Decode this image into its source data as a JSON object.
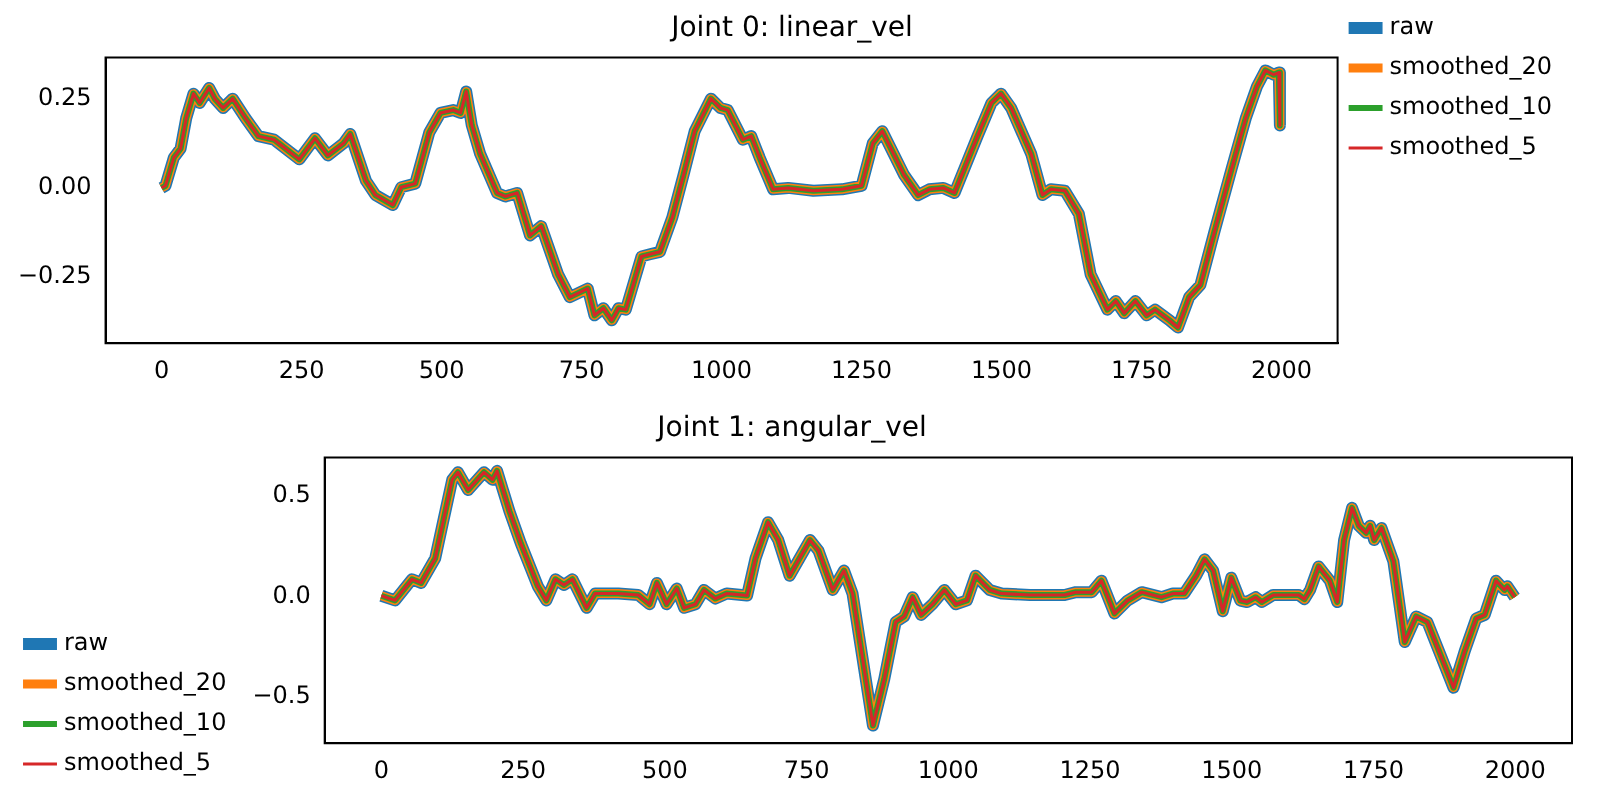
{
  "chart_data": [
    {
      "type": "line",
      "title": "Joint 0: linear_vel",
      "x": [
        0,
        7,
        22,
        34,
        44,
        57,
        68,
        85,
        95,
        110,
        127,
        150,
        173,
        201,
        246,
        274,
        297,
        325,
        337,
        365,
        382,
        413,
        428,
        453,
        478,
        498,
        521,
        534,
        544,
        554,
        569,
        599,
        614,
        635,
        658,
        678,
        708,
        729,
        761,
        773,
        789,
        804,
        816,
        829,
        857,
        872,
        890,
        912,
        932,
        952,
        981,
        998,
        1011,
        1038,
        1053,
        1068,
        1092,
        1119,
        1164,
        1215,
        1250,
        1270,
        1287,
        1326,
        1351,
        1371,
        1396,
        1416,
        1457,
        1482,
        1499,
        1517,
        1553,
        1573,
        1588,
        1613,
        1638,
        1659,
        1689,
        1704,
        1719,
        1739,
        1759,
        1774,
        1800,
        1815,
        1835,
        1855,
        1880,
        1911,
        1936,
        1956,
        1971,
        1986,
        1995,
        1997
      ],
      "series": [
        {
          "name": "raw",
          "color": "#1f77b4",
          "values": [
            0,
            0.006,
            0.085,
            0.11,
            0.195,
            0.264,
            0.238,
            0.28,
            0.25,
            0.224,
            0.25,
            0.195,
            0.145,
            0.135,
            0.08,
            0.139,
            0.091,
            0.125,
            0.151,
            0.02,
            -0.02,
            -0.048,
            0.002,
            0.012,
            0.155,
            0.21,
            0.218,
            0.21,
            0.27,
            0.175,
            0.095,
            -0.014,
            -0.024,
            -0.014,
            -0.133,
            -0.107,
            -0.242,
            -0.306,
            -0.282,
            -0.357,
            -0.337,
            -0.371,
            -0.337,
            -0.341,
            -0.192,
            -0.186,
            -0.179,
            -0.083,
            0.036,
            0.159,
            0.25,
            0.224,
            0.218,
            0.135,
            0.145,
            0.085,
            -0.004,
            0,
            -0.008,
            -0.004,
            0.006,
            0.125,
            0.159,
            0.036,
            -0.02,
            -0.004,
            0,
            -0.014,
            0.145,
            0.238,
            0.264,
            0.224,
            0.095,
            -0.02,
            -0.004,
            -0.008,
            -0.073,
            -0.242,
            -0.341,
            -0.317,
            -0.351,
            -0.317,
            -0.357,
            -0.341,
            -0.371,
            -0.391,
            -0.306,
            -0.272,
            -0.123,
            0.055,
            0.195,
            0.284,
            0.329,
            0.317,
            0.323,
            0.175
          ]
        },
        {
          "name": "smoothed_20",
          "color": "#ff7f0e",
          "values": [
            0,
            0.006,
            0.085,
            0.11,
            0.195,
            0.264,
            0.238,
            0.28,
            0.25,
            0.224,
            0.25,
            0.195,
            0.145,
            0.135,
            0.08,
            0.139,
            0.091,
            0.125,
            0.151,
            0.02,
            -0.02,
            -0.048,
            0.002,
            0.012,
            0.155,
            0.21,
            0.218,
            0.21,
            0.27,
            0.175,
            0.095,
            -0.014,
            -0.024,
            -0.014,
            -0.133,
            -0.107,
            -0.242,
            -0.306,
            -0.282,
            -0.357,
            -0.337,
            -0.371,
            -0.337,
            -0.341,
            -0.192,
            -0.186,
            -0.179,
            -0.083,
            0.036,
            0.159,
            0.25,
            0.224,
            0.218,
            0.135,
            0.145,
            0.085,
            -0.004,
            0,
            -0.008,
            -0.004,
            0.006,
            0.125,
            0.159,
            0.036,
            -0.02,
            -0.004,
            0,
            -0.014,
            0.145,
            0.238,
            0.264,
            0.224,
            0.095,
            -0.02,
            -0.004,
            -0.008,
            -0.073,
            -0.242,
            -0.341,
            -0.317,
            -0.351,
            -0.317,
            -0.357,
            -0.341,
            -0.371,
            -0.391,
            -0.306,
            -0.272,
            -0.123,
            0.055,
            0.195,
            0.284,
            0.329,
            0.317,
            0.323,
            0.175
          ]
        },
        {
          "name": "smoothed_10",
          "color": "#2ca02c",
          "values": [
            0,
            0.006,
            0.085,
            0.11,
            0.195,
            0.264,
            0.238,
            0.28,
            0.25,
            0.224,
            0.25,
            0.195,
            0.145,
            0.135,
            0.08,
            0.139,
            0.091,
            0.125,
            0.151,
            0.02,
            -0.02,
            -0.048,
            0.002,
            0.012,
            0.155,
            0.21,
            0.218,
            0.21,
            0.27,
            0.175,
            0.095,
            -0.014,
            -0.024,
            -0.014,
            -0.133,
            -0.107,
            -0.242,
            -0.306,
            -0.282,
            -0.357,
            -0.337,
            -0.371,
            -0.337,
            -0.341,
            -0.192,
            -0.186,
            -0.179,
            -0.083,
            0.036,
            0.159,
            0.25,
            0.224,
            0.218,
            0.135,
            0.145,
            0.085,
            -0.004,
            0,
            -0.008,
            -0.004,
            0.006,
            0.125,
            0.159,
            0.036,
            -0.02,
            -0.004,
            0,
            -0.014,
            0.145,
            0.238,
            0.264,
            0.224,
            0.095,
            -0.02,
            -0.004,
            -0.008,
            -0.073,
            -0.242,
            -0.341,
            -0.317,
            -0.351,
            -0.317,
            -0.357,
            -0.341,
            -0.371,
            -0.391,
            -0.306,
            -0.272,
            -0.123,
            0.055,
            0.195,
            0.284,
            0.329,
            0.317,
            0.323,
            0.175
          ]
        },
        {
          "name": "smoothed_5",
          "color": "#d62728",
          "values": [
            0,
            0.006,
            0.085,
            0.11,
            0.195,
            0.264,
            0.238,
            0.28,
            0.25,
            0.224,
            0.25,
            0.195,
            0.145,
            0.135,
            0.08,
            0.139,
            0.091,
            0.125,
            0.151,
            0.02,
            -0.02,
            -0.048,
            0.002,
            0.012,
            0.155,
            0.21,
            0.218,
            0.21,
            0.27,
            0.175,
            0.095,
            -0.014,
            -0.024,
            -0.014,
            -0.133,
            -0.107,
            -0.242,
            -0.306,
            -0.282,
            -0.357,
            -0.337,
            -0.371,
            -0.337,
            -0.341,
            -0.192,
            -0.186,
            -0.179,
            -0.083,
            0.036,
            0.159,
            0.25,
            0.224,
            0.218,
            0.135,
            0.145,
            0.085,
            -0.004,
            0,
            -0.008,
            -0.004,
            0.006,
            0.125,
            0.159,
            0.036,
            -0.02,
            -0.004,
            0,
            -0.014,
            0.145,
            0.238,
            0.264,
            0.224,
            0.095,
            -0.02,
            -0.004,
            -0.008,
            -0.073,
            -0.242,
            -0.341,
            -0.317,
            -0.351,
            -0.317,
            -0.357,
            -0.341,
            -0.371,
            -0.391,
            -0.306,
            -0.272,
            -0.123,
            0.055,
            0.195,
            0.284,
            0.329,
            0.317,
            0.323,
            0.175
          ]
        }
      ],
      "xlim": [
        -100,
        2100
      ],
      "xticks": [
        0,
        250,
        500,
        750,
        1000,
        1250,
        1500,
        1750,
        2000
      ],
      "ylim": [
        -0.435,
        0.365
      ],
      "yticks": [
        {
          "value": -0.25,
          "label": "−0.25"
        },
        {
          "value": 0,
          "label": "0.00"
        },
        {
          "value": 0.25,
          "label": "0.25"
        }
      ],
      "legend": "top right"
    },
    {
      "type": "line",
      "title": "Joint 1: angular_vel",
      "x": [
        0,
        24,
        54,
        70,
        95,
        110,
        125,
        135,
        153,
        181,
        196,
        204,
        226,
        246,
        276,
        291,
        307,
        322,
        337,
        362,
        377,
        418,
        453,
        473,
        486,
        503,
        521,
        534,
        554,
        569,
        589,
        609,
        645,
        660,
        682,
        700,
        720,
        756,
        771,
        796,
        816,
        831,
        867,
        887,
        907,
        922,
        937,
        952,
        972,
        993,
        1013,
        1033,
        1048,
        1073,
        1094,
        1144,
        1205,
        1225,
        1253,
        1270,
        1293,
        1316,
        1341,
        1376,
        1396,
        1416,
        1437,
        1452,
        1467,
        1484,
        1499,
        1515,
        1527,
        1542,
        1553,
        1573,
        1618,
        1628,
        1638,
        1653,
        1673,
        1686,
        1698,
        1712,
        1724,
        1737,
        1744,
        1751,
        1764,
        1785,
        1805,
        1825,
        1845,
        1870,
        1891,
        1911,
        1931,
        1946,
        1966,
        1981,
        1986,
        1999
      ],
      "series": [
        {
          "name": "raw",
          "color": "#1f77b4",
          "values": [
            0.003,
            -0.02,
            0.085,
            0.067,
            0.19,
            0.386,
            0.58,
            0.617,
            0.529,
            0.617,
            0.58,
            0.624,
            0.422,
            0.263,
            0.05,
            -0.02,
            0.085,
            0.057,
            0.085,
            -0.057,
            0.014,
            0.014,
            0.007,
            -0.039,
            0.067,
            -0.039,
            0.039,
            -0.057,
            -0.039,
            0.032,
            -0.011,
            0.014,
            0.004,
            0.19,
            0.369,
            0.28,
            0.103,
            0.28,
            0.227,
            0.032,
            0.128,
            0.014,
            -0.642,
            -0.411,
            -0.128,
            -0.1,
            -0.004,
            -0.092,
            -0.039,
            0.032,
            -0.039,
            -0.02,
            0.103,
            0.032,
            0.014,
            0.007,
            0.007,
            0.021,
            0.021,
            0.078,
            -0.085,
            -0.021,
            0.021,
            -0.004,
            0.014,
            0.014,
            0.103,
            0.184,
            0.128,
            -0.074,
            0.093,
            -0.021,
            -0.028,
            -0.004,
            -0.028,
            0.007,
            0.007,
            -0.014,
            0.032,
            0.149,
            0.078,
            -0.028,
            0.28,
            0.44,
            0.351,
            0.316,
            0.351,
            0.28,
            0.34,
            0.173,
            -0.227,
            -0.1,
            -0.128,
            -0.305,
            -0.454,
            -0.27,
            -0.11,
            -0.092,
            0.078,
            0.032,
            0.05,
            -0.004
          ]
        },
        {
          "name": "smoothed_20",
          "color": "#ff7f0e",
          "values": [
            0.003,
            -0.02,
            0.085,
            0.067,
            0.19,
            0.386,
            0.58,
            0.617,
            0.529,
            0.617,
            0.58,
            0.624,
            0.422,
            0.263,
            0.05,
            -0.02,
            0.085,
            0.057,
            0.085,
            -0.057,
            0.014,
            0.014,
            0.007,
            -0.039,
            0.067,
            -0.039,
            0.039,
            -0.057,
            -0.039,
            0.032,
            -0.011,
            0.014,
            0.004,
            0.19,
            0.369,
            0.28,
            0.103,
            0.28,
            0.227,
            0.032,
            0.128,
            0.014,
            -0.642,
            -0.411,
            -0.128,
            -0.1,
            -0.004,
            -0.092,
            -0.039,
            0.032,
            -0.039,
            -0.02,
            0.103,
            0.032,
            0.014,
            0.007,
            0.007,
            0.021,
            0.021,
            0.078,
            -0.085,
            -0.021,
            0.021,
            -0.004,
            0.014,
            0.014,
            0.103,
            0.184,
            0.128,
            -0.074,
            0.093,
            -0.021,
            -0.028,
            -0.004,
            -0.028,
            0.007,
            0.007,
            -0.014,
            0.032,
            0.149,
            0.078,
            -0.028,
            0.28,
            0.44,
            0.351,
            0.316,
            0.351,
            0.28,
            0.34,
            0.173,
            -0.227,
            -0.1,
            -0.128,
            -0.305,
            -0.454,
            -0.27,
            -0.11,
            -0.092,
            0.078,
            0.032,
            0.05,
            -0.004
          ]
        },
        {
          "name": "smoothed_10",
          "color": "#2ca02c",
          "values": [
            0.003,
            -0.02,
            0.085,
            0.067,
            0.19,
            0.386,
            0.58,
            0.617,
            0.529,
            0.617,
            0.58,
            0.624,
            0.422,
            0.263,
            0.05,
            -0.02,
            0.085,
            0.057,
            0.085,
            -0.057,
            0.014,
            0.014,
            0.007,
            -0.039,
            0.067,
            -0.039,
            0.039,
            -0.057,
            -0.039,
            0.032,
            -0.011,
            0.014,
            0.004,
            0.19,
            0.369,
            0.28,
            0.103,
            0.28,
            0.227,
            0.032,
            0.128,
            0.014,
            -0.642,
            -0.411,
            -0.128,
            -0.1,
            -0.004,
            -0.092,
            -0.039,
            0.032,
            -0.039,
            -0.02,
            0.103,
            0.032,
            0.014,
            0.007,
            0.007,
            0.021,
            0.021,
            0.078,
            -0.085,
            -0.021,
            0.021,
            -0.004,
            0.014,
            0.014,
            0.103,
            0.184,
            0.128,
            -0.074,
            0.093,
            -0.021,
            -0.028,
            -0.004,
            -0.028,
            0.007,
            0.007,
            -0.014,
            0.032,
            0.149,
            0.078,
            -0.028,
            0.28,
            0.44,
            0.351,
            0.316,
            0.351,
            0.28,
            0.34,
            0.173,
            -0.227,
            -0.1,
            -0.128,
            -0.305,
            -0.454,
            -0.27,
            -0.11,
            -0.092,
            0.078,
            0.032,
            0.05,
            -0.004
          ]
        },
        {
          "name": "smoothed_5",
          "color": "#d62728",
          "values": [
            0.003,
            -0.02,
            0.085,
            0.067,
            0.19,
            0.386,
            0.58,
            0.617,
            0.529,
            0.617,
            0.58,
            0.624,
            0.422,
            0.263,
            0.05,
            -0.02,
            0.085,
            0.057,
            0.085,
            -0.057,
            0.014,
            0.014,
            0.007,
            -0.039,
            0.067,
            -0.039,
            0.039,
            -0.057,
            -0.039,
            0.032,
            -0.011,
            0.014,
            0.004,
            0.19,
            0.369,
            0.28,
            0.103,
            0.28,
            0.227,
            0.032,
            0.128,
            0.014,
            -0.642,
            -0.411,
            -0.128,
            -0.1,
            -0.004,
            -0.092,
            -0.039,
            0.032,
            -0.039,
            -0.02,
            0.103,
            0.032,
            0.014,
            0.007,
            0.007,
            0.021,
            0.021,
            0.078,
            -0.085,
            -0.021,
            0.021,
            -0.004,
            0.014,
            0.014,
            0.103,
            0.184,
            0.128,
            -0.074,
            0.093,
            -0.021,
            -0.028,
            -0.004,
            -0.028,
            0.007,
            0.007,
            -0.014,
            0.032,
            0.149,
            0.078,
            -0.028,
            0.28,
            0.44,
            0.351,
            0.316,
            0.351,
            0.28,
            0.34,
            0.173,
            -0.227,
            -0.1,
            -0.128,
            -0.305,
            -0.454,
            -0.27,
            -0.11,
            -0.092,
            0.078,
            0.032,
            0.05,
            -0.004
          ]
        }
      ],
      "xlim": [
        -100,
        2100
      ],
      "xticks": [
        0,
        250,
        500,
        750,
        1000,
        1250,
        1500,
        1750,
        2000
      ],
      "ylim": [
        -0.73,
        0.69
      ],
      "yticks": [
        {
          "value": -0.5,
          "label": "−0.5"
        },
        {
          "value": 0,
          "label": "0.0"
        },
        {
          "value": 0.5,
          "label": "0.5"
        }
      ],
      "legend": "bottom left"
    }
  ]
}
